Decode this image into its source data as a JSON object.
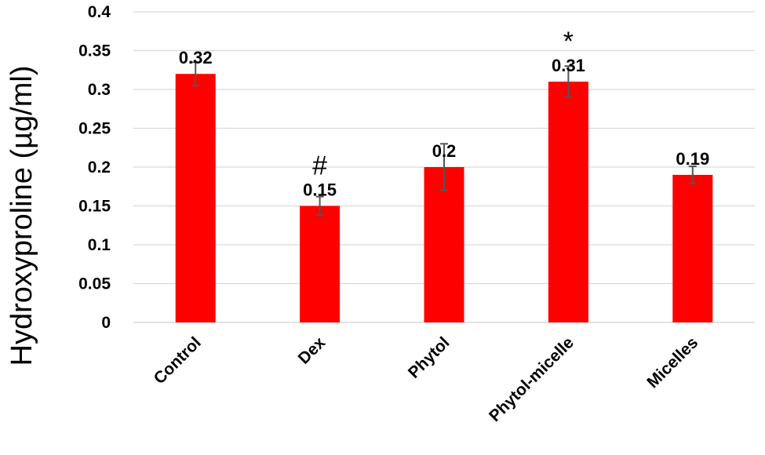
{
  "chart_data": {
    "type": "bar",
    "title": "",
    "xlabel": "",
    "ylabel": "Hydroxyproline (µg/ml)",
    "ylim": [
      0,
      0.4
    ],
    "yticks": [
      "0",
      "0.05",
      "0.1",
      "0.15",
      "0.2",
      "0.25",
      "0.3",
      "0.35",
      "0.4"
    ],
    "grid": true,
    "legend": "none",
    "bar_color": "#ff0000",
    "error_color": "#555555",
    "categories": [
      "Control",
      "Dex",
      "Phytol",
      "Phytol-micelle",
      "Micelles"
    ],
    "values": [
      0.32,
      0.15,
      0.2,
      0.31,
      0.19
    ],
    "errors": [
      0.015,
      0.012,
      0.03,
      0.02,
      0.011
    ],
    "data_labels": [
      "0.32",
      "0.15",
      "0.2",
      "0.31",
      "0.19"
    ],
    "annotations": [
      "",
      "#",
      "",
      "*",
      ""
    ]
  }
}
